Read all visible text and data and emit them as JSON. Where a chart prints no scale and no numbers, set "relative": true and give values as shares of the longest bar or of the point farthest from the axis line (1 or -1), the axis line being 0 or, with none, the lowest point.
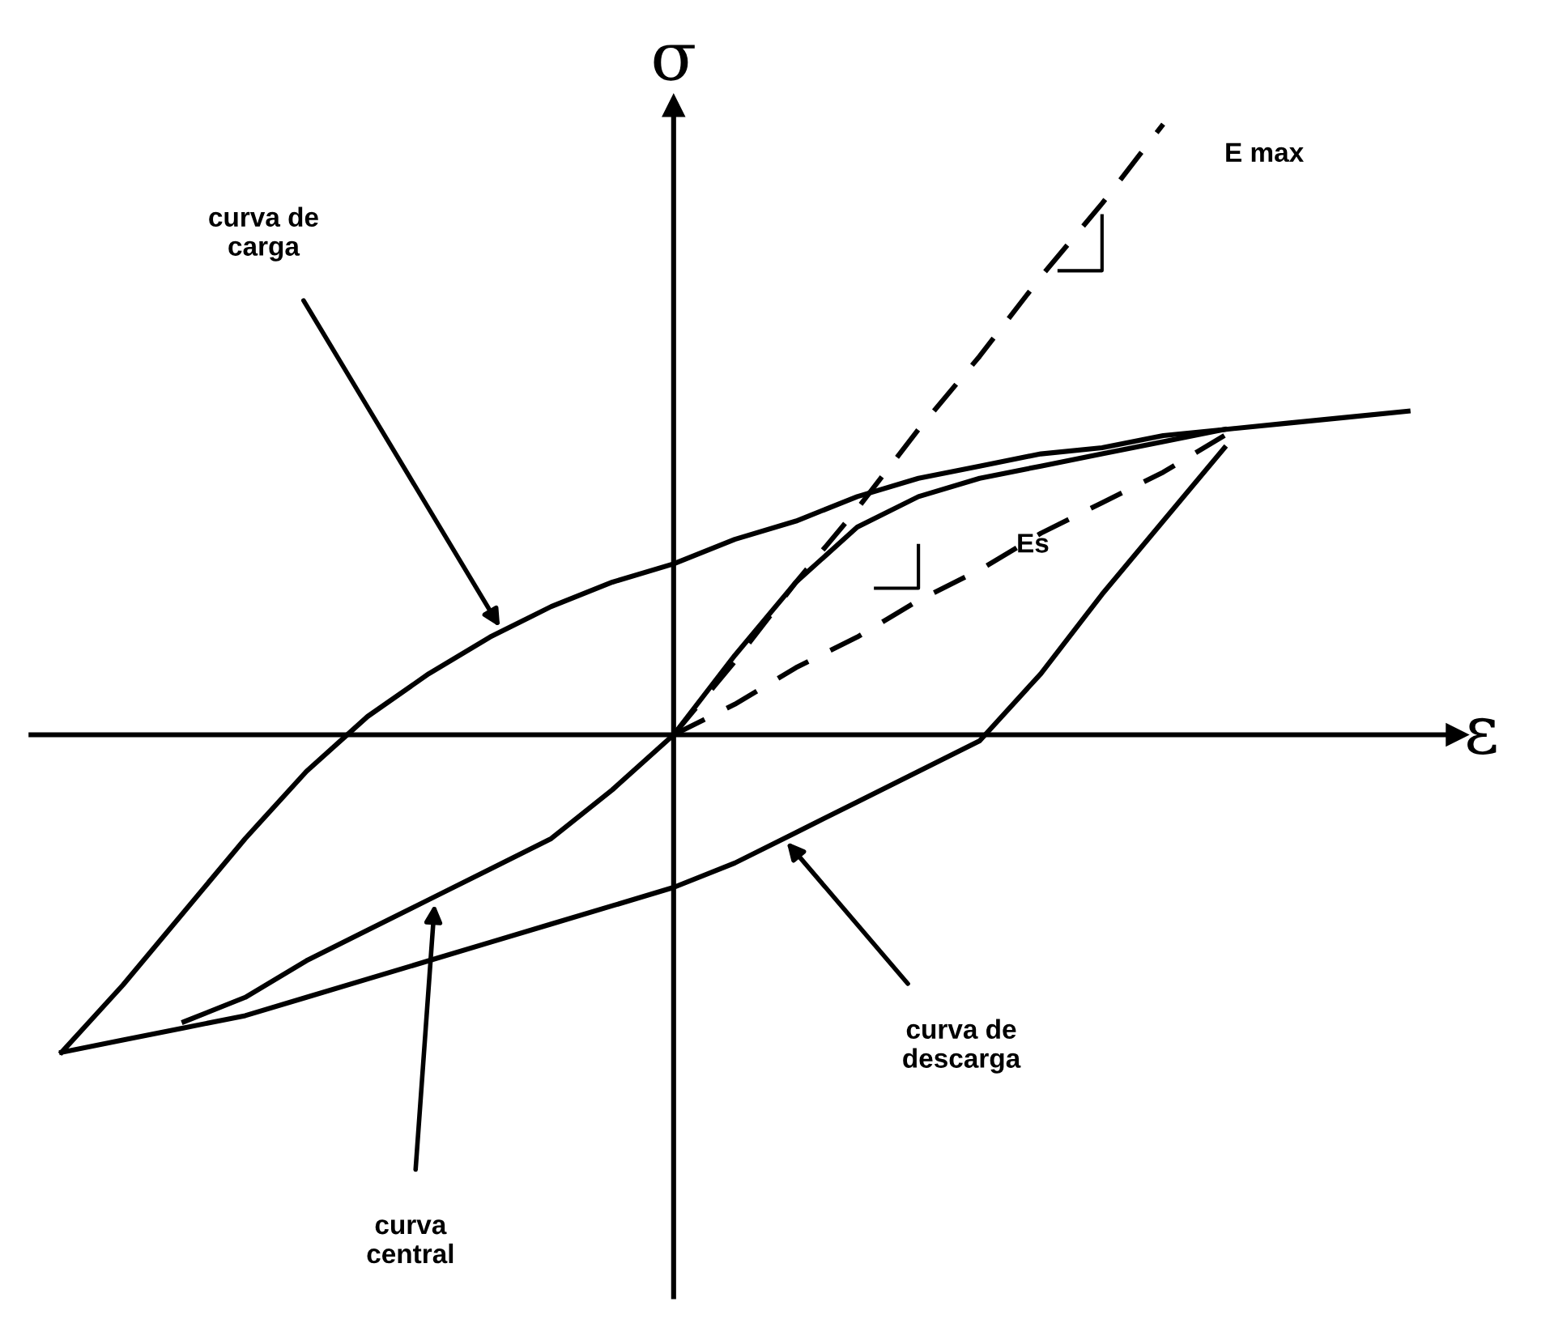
{
  "chart_data": {
    "type": "line",
    "relative": true,
    "xlabel": "ε",
    "ylabel": "σ",
    "categories": [
      null,
      null,
      null,
      null,
      null,
      null,
      null,
      null,
      null,
      null,
      null,
      null,
      null,
      null,
      null,
      null,
      null,
      null,
      null,
      null,
      null,
      null,
      null
    ],
    "series": [
      {
        "values": [
          -0.52,
          -0.41,
          -0.29,
          -0.17,
          -0.06,
          0.03,
          0.1,
          0.16,
          0.21,
          0.25,
          0.28,
          0.32,
          0.35,
          0.39,
          0.42,
          0.44,
          0.46,
          0.47,
          0.49,
          0.5,
          0.51,
          0.52,
          0.53
        ],
        "color": "#000000",
        "line_style": "solid"
      },
      {
        "values": [
          -0.52,
          -0.5,
          -0.48,
          -0.46,
          -0.43,
          -0.4,
          -0.37,
          -0.34,
          -0.31,
          -0.28,
          -0.25,
          -0.21,
          -0.16,
          -0.11,
          -0.06,
          -0.01,
          0.1,
          0.23,
          0.35,
          0.47,
          null,
          null,
          null
        ],
        "color": "#000000",
        "line_style": "solid"
      },
      {
        "values": [
          null,
          null,
          -0.47,
          -0.43,
          -0.37,
          -0.32,
          -0.27,
          -0.22,
          -0.17,
          -0.09,
          0,
          0.13,
          0.25,
          0.34,
          0.39,
          0.42,
          0.44,
          0.46,
          0.48,
          0.5,
          null,
          null,
          null
        ],
        "color": "#000000",
        "line_style": "solid"
      },
      {
        "values": [
          null,
          null,
          null,
          null,
          null,
          null,
          null,
          null,
          null,
          null,
          0,
          0.12,
          0.25,
          0.37,
          0.5,
          0.62,
          0.75,
          0.87,
          1.0,
          null,
          null,
          null,
          null
        ],
        "color": "#000000",
        "line_style": "dashed"
      },
      {
        "values": [
          null,
          null,
          null,
          null,
          null,
          null,
          null,
          null,
          null,
          null,
          0,
          0.05,
          0.11,
          0.16,
          0.22,
          0.27,
          0.33,
          0.38,
          0.43,
          0.49,
          null,
          null,
          null
        ],
        "color": "#000000",
        "line_style": "dashed"
      }
    ],
    "annotations": [
      "curva de carga",
      "curva de descarga",
      "curva central",
      "E max",
      "Es"
    ]
  }
}
